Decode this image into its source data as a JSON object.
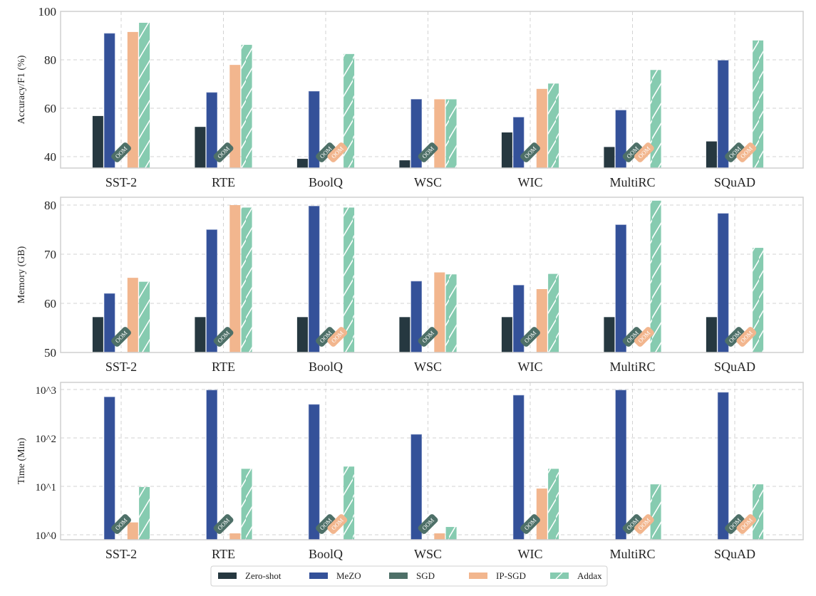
{
  "legend": {
    "placement": "bottom-center",
    "entries": [
      "Zero-shot",
      "MeZO",
      "SGD",
      "IP-SGD",
      "Addax"
    ]
  },
  "colors": {
    "Zero-shot": "#263840",
    "MeZO": "#345199",
    "SGD": "#4e7068",
    "IP-SGD": "#f2b68e",
    "Addax": "#86cbb0"
  },
  "oom_label": "OOM",
  "chart_data": [
    {
      "type": "bar",
      "ylabel": "Accuracy/F1 (%)",
      "ylim": [
        35.3,
        100
      ],
      "yticks": [
        40,
        60,
        80,
        100
      ],
      "ytick_labels": [
        "40",
        "60",
        "80",
        "100"
      ],
      "grid": true,
      "categories": [
        "SST-2",
        "RTE",
        "BoolQ",
        "WSC",
        "WIC",
        "MultiRC",
        "SQuAD"
      ],
      "series": [
        {
          "name": "Zero-shot",
          "values": [
            56.8,
            52.3,
            39.1,
            38.5,
            50.0,
            44.0,
            46.3
          ]
        },
        {
          "name": "MeZO",
          "values": [
            90.9,
            66.5,
            67.0,
            63.7,
            56.3,
            59.2,
            79.8
          ]
        },
        {
          "name": "SGD",
          "values": [
            null,
            null,
            null,
            null,
            null,
            null,
            null
          ],
          "oom": [
            true,
            true,
            true,
            true,
            true,
            true,
            true
          ]
        },
        {
          "name": "IP-SGD",
          "values": [
            91.5,
            77.9,
            null,
            63.7,
            68.0,
            null,
            null
          ],
          "oom": [
            false,
            false,
            true,
            false,
            false,
            true,
            true
          ]
        },
        {
          "name": "Addax",
          "values": [
            95.3,
            86.2,
            82.4,
            63.7,
            70.2,
            75.8,
            88.0
          ]
        }
      ]
    },
    {
      "type": "bar",
      "ylabel": "Memory (GB)",
      "ylim": [
        50,
        81.6
      ],
      "yticks": [
        50,
        60,
        70,
        80
      ],
      "ytick_labels": [
        "50",
        "60",
        "70",
        "80"
      ],
      "grid": true,
      "categories": [
        "SST-2",
        "RTE",
        "BoolQ",
        "WSC",
        "WIC",
        "MultiRC",
        "SQuAD"
      ],
      "series": [
        {
          "name": "Zero-shot",
          "values": [
            57.2,
            57.2,
            57.2,
            57.2,
            57.2,
            57.2,
            57.2
          ]
        },
        {
          "name": "MeZO",
          "values": [
            62.0,
            75.0,
            79.8,
            64.5,
            63.7,
            76.0,
            78.3
          ]
        },
        {
          "name": "SGD",
          "values": [
            null,
            null,
            null,
            null,
            null,
            null,
            null
          ],
          "oom": [
            true,
            true,
            true,
            true,
            true,
            true,
            true
          ]
        },
        {
          "name": "IP-SGD",
          "values": [
            65.2,
            80.0,
            null,
            66.3,
            62.9,
            null,
            null
          ],
          "oom": [
            false,
            false,
            true,
            false,
            false,
            true,
            true
          ]
        },
        {
          "name": "Addax",
          "values": [
            64.4,
            79.5,
            79.5,
            65.9,
            66.0,
            80.9,
            71.3
          ]
        }
      ]
    },
    {
      "type": "bar",
      "ylabel": "Time (Min)",
      "yscale": "log",
      "ylim": [
        0.79,
        1400
      ],
      "yticks": [
        1,
        10,
        100,
        1000
      ],
      "ytick_labels": [
        "10^0",
        "10^1",
        "10^2",
        "10^3"
      ],
      "grid": true,
      "categories": [
        "SST-2",
        "RTE",
        "BoolQ",
        "WSC",
        "WIC",
        "MultiRC",
        "SQuAD"
      ],
      "series": [
        {
          "name": "Zero-shot",
          "values": [
            null,
            null,
            null,
            null,
            null,
            null,
            null
          ]
        },
        {
          "name": "MeZO",
          "values": [
            700,
            970,
            490,
            118,
            760,
            970,
            870
          ]
        },
        {
          "name": "SGD",
          "values": [
            null,
            null,
            null,
            null,
            null,
            null,
            null
          ],
          "oom": [
            true,
            true,
            true,
            true,
            true,
            true,
            true
          ]
        },
        {
          "name": "IP-SGD",
          "values": [
            1.8,
            1.07,
            null,
            1.07,
            9.0,
            null,
            null
          ],
          "oom": [
            false,
            false,
            true,
            false,
            false,
            true,
            true
          ]
        },
        {
          "name": "Addax",
          "values": [
            9.7,
            23,
            25.6,
            1.45,
            23,
            11,
            11
          ]
        }
      ]
    }
  ]
}
